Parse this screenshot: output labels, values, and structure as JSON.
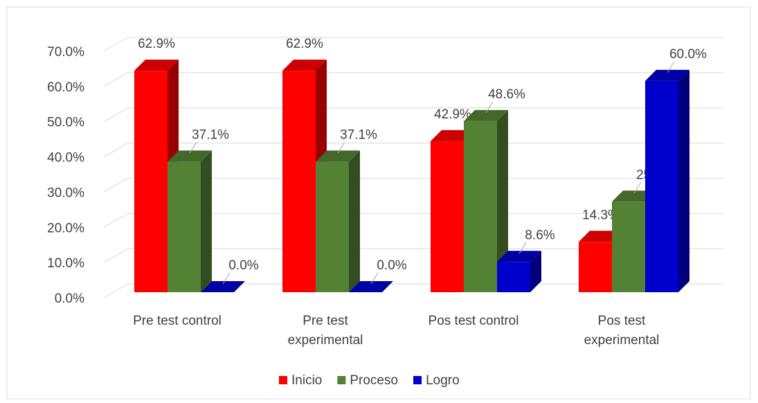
{
  "chart_data": {
    "type": "bar3d",
    "categories": [
      "Pre test control",
      "Pre test experimental",
      "Pos test control",
      "Pos test experimental"
    ],
    "series": [
      {
        "name": "Inicio",
        "color": "#ff0000",
        "values": [
          62.9,
          62.9,
          42.9,
          14.3
        ],
        "value_labels": [
          "62.9%",
          "62.9%",
          "42.9%",
          "14.3%"
        ]
      },
      {
        "name": "Proceso",
        "color": "#548235",
        "values": [
          37.1,
          37.1,
          48.6,
          25.7
        ],
        "value_labels": [
          "37.1%",
          "37.1%",
          "48.6%",
          "25.7%"
        ]
      },
      {
        "name": "Logro",
        "color": "#0000cc",
        "values": [
          0.0,
          0.0,
          8.6,
          60.0
        ],
        "value_labels": [
          "0.0%",
          "0.0%",
          "8.6%",
          "60.0%"
        ]
      }
    ],
    "ylim": [
      0,
      70
    ],
    "yticks": [
      {
        "value": 0,
        "label": "0.0%"
      },
      {
        "value": 10,
        "label": "10.0%"
      },
      {
        "value": 20,
        "label": "20.0%"
      },
      {
        "value": 30,
        "label": "30.0%"
      },
      {
        "value": 40,
        "label": "40.0%"
      },
      {
        "value": 50,
        "label": "50.0%"
      },
      {
        "value": 60,
        "label": "60.0%"
      },
      {
        "value": 70,
        "label": "70.0%"
      }
    ],
    "grid": true,
    "legend": "bottom"
  }
}
